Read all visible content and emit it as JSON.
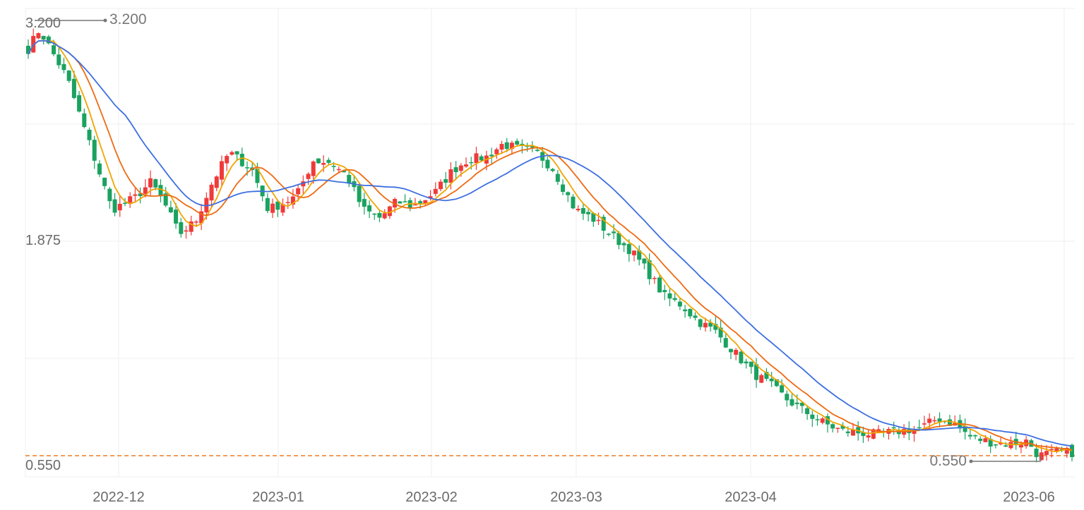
{
  "chart_data": {
    "type": "candlestick",
    "title": "",
    "x_tick_labels": [
      "2022-12",
      "2023-01",
      "2023-02",
      "2023-03",
      "2023-04",
      "2023-06"
    ],
    "y_tick_labels": [
      "3.200",
      "1.875",
      "0.550"
    ],
    "ylim": [
      0.55,
      3.2
    ],
    "grid": true,
    "last_price_line": 0.55,
    "annotations": {
      "max_label": "3.200",
      "min_label": "0.550"
    },
    "colors": {
      "up": "#f03a3a",
      "down": "#1aa260",
      "ma_short": "#f0a500",
      "ma_mid": "#ee6a12",
      "ma_long": "#3d6fe0",
      "grid": "#efefef",
      "last_line": "#ee7b22",
      "axis_text": "#6b6b6b"
    },
    "series": [
      {
        "name": "",
        "type": "ohlc",
        "style": "candles"
      },
      {
        "name": "",
        "type": "moving-average",
        "color": "ma_short"
      },
      {
        "name": "",
        "type": "moving-average",
        "color": "ma_mid"
      },
      {
        "name": "",
        "type": "moving-average",
        "color": "ma_long"
      }
    ],
    "ohlc_note": "",
    "date_start": "2022-11-20",
    "date_end": "2023-06-05"
  }
}
